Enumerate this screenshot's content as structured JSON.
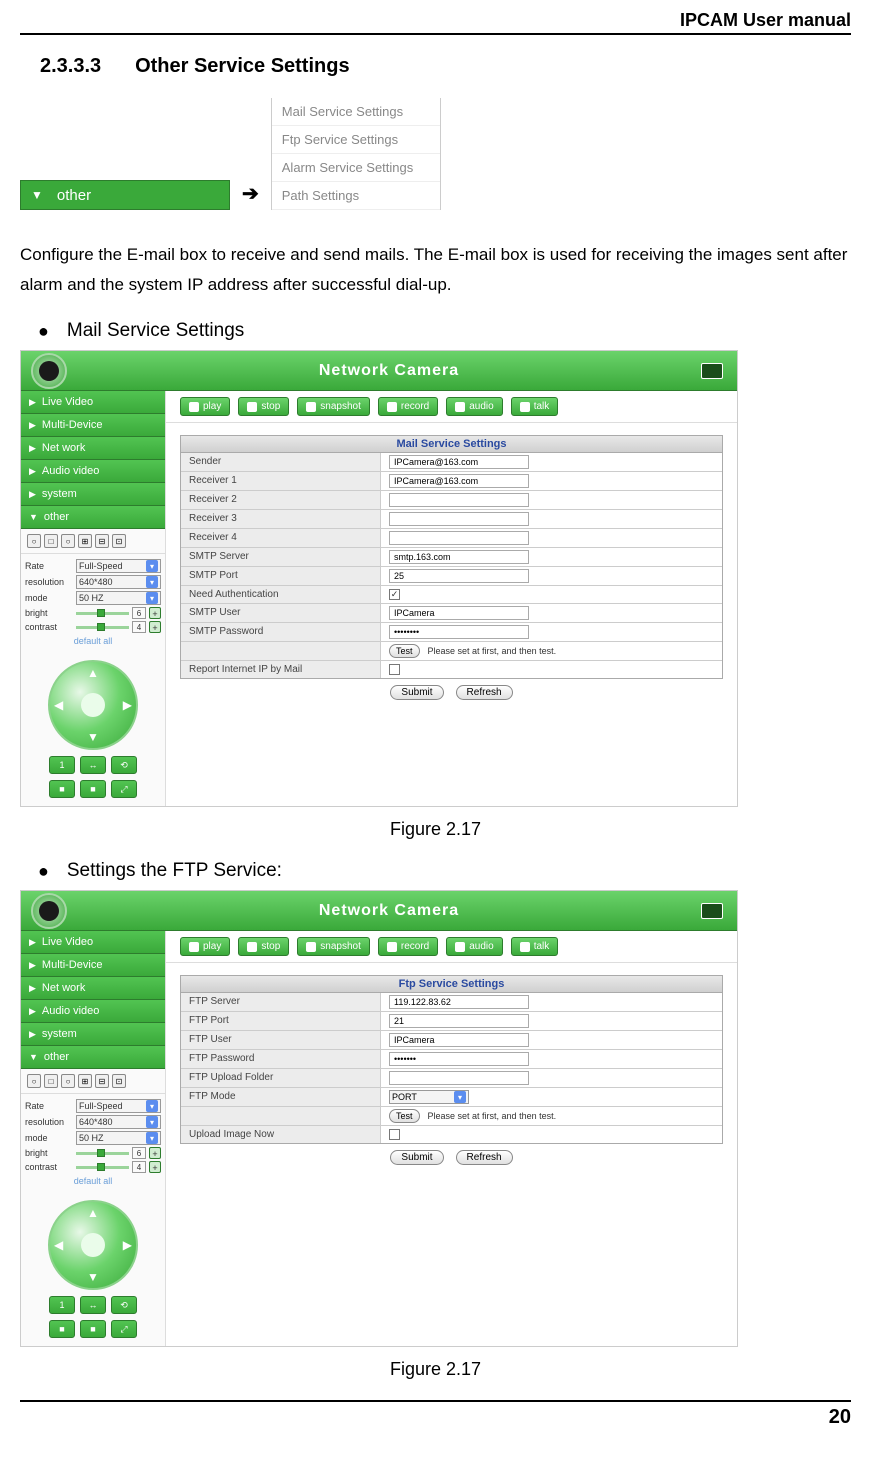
{
  "header": {
    "manual_title": "IPCAM User manual"
  },
  "section": {
    "number": "2.3.3.3",
    "title": "Other Service Settings"
  },
  "other_button": {
    "label": "other"
  },
  "submenu": {
    "items": [
      "Mail Service Settings",
      "Ftp Service Settings",
      "Alarm Service Settings",
      "Path Settings"
    ]
  },
  "body_text": "Configure the E-mail box to receive and send mails. The E-mail box is used for receiving the images sent after alarm and the system IP address after successful dial-up.",
  "bullets": {
    "mail": "Mail Service Settings",
    "ftp": "Settings the FTP Service:"
  },
  "app": {
    "title": "Network Camera",
    "nav": [
      "Live Video",
      "Multi-Device",
      "Net work",
      "Audio video",
      "system",
      "other"
    ],
    "toolbar": [
      "play",
      "stop",
      "snapshot",
      "record",
      "audio",
      "talk"
    ],
    "rate_label": "Rate",
    "rate_val": "Full-Speed",
    "res_label": "resolution",
    "res_val": "640*480",
    "mode_label": "mode",
    "mode_val": "50 HZ",
    "bright_label": "bright",
    "bright_val": "6",
    "contrast_label": "contrast",
    "contrast_val": "4",
    "default_all": "default all",
    "submit": "Submit",
    "refresh": "Refresh",
    "test": "Test",
    "hint": "Please set at first, and then test."
  },
  "mail_form": {
    "title": "Mail Service Settings",
    "rows": [
      {
        "label": "Sender",
        "value": "IPCamera@163.com",
        "type": "text"
      },
      {
        "label": "Receiver 1",
        "value": "IPCamera@163.com",
        "type": "text"
      },
      {
        "label": "Receiver 2",
        "value": "",
        "type": "text"
      },
      {
        "label": "Receiver 3",
        "value": "",
        "type": "text"
      },
      {
        "label": "Receiver 4",
        "value": "",
        "type": "text"
      },
      {
        "label": "SMTP Server",
        "value": "smtp.163.com",
        "type": "text"
      },
      {
        "label": "SMTP Port",
        "value": "25",
        "type": "text"
      },
      {
        "label": "Need Authentication",
        "value": "✓",
        "type": "check"
      },
      {
        "label": "SMTP User",
        "value": "IPCamera",
        "type": "text"
      },
      {
        "label": "SMTP Password",
        "value": "••••••••",
        "type": "text"
      },
      {
        "label": "",
        "value": "",
        "type": "test"
      },
      {
        "label": "Report Internet IP by Mail",
        "value": "",
        "type": "checkempty"
      }
    ]
  },
  "ftp_form": {
    "title": "Ftp Service Settings",
    "rows": [
      {
        "label": "FTP Server",
        "value": "119.122.83.62",
        "type": "text"
      },
      {
        "label": "FTP Port",
        "value": "21",
        "type": "text"
      },
      {
        "label": "FTP User",
        "value": "IPCamera",
        "type": "text"
      },
      {
        "label": "FTP Password",
        "value": "•••••••",
        "type": "text"
      },
      {
        "label": "FTP Upload Folder",
        "value": "",
        "type": "text"
      },
      {
        "label": "FTP Mode",
        "value": "PORT",
        "type": "select"
      },
      {
        "label": "",
        "value": "",
        "type": "test"
      },
      {
        "label": "Upload Image Now",
        "value": "",
        "type": "checkempty"
      }
    ]
  },
  "figure_caption": "Figure 2.17",
  "page_number": "20",
  "colors": {
    "green_primary": "#3aa93a",
    "green_dark": "#2d7c2d",
    "green_light": "#6bd36b",
    "title_blue": "#2a4aa0"
  }
}
